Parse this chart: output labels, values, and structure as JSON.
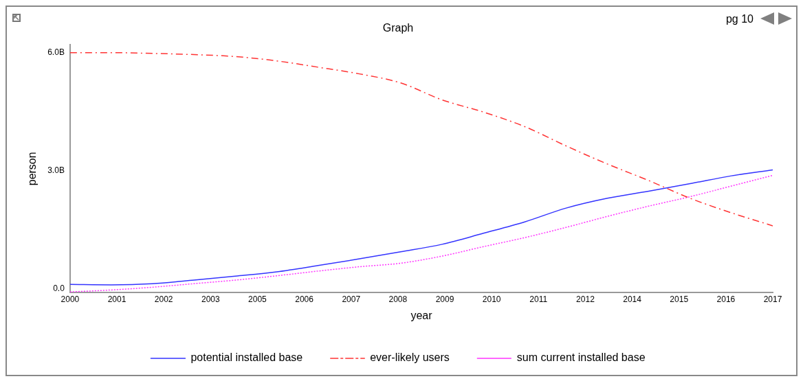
{
  "chart_data": {
    "type": "line",
    "title": "Graph",
    "xlabel": "year",
    "ylabel": "person",
    "annotations": [
      "pg 10"
    ],
    "x": [
      2000,
      2001,
      2002,
      2003,
      2004,
      2005,
      2006,
      2007,
      2008,
      2009,
      2010,
      2011,
      2012,
      2013,
      2014,
      2015,
      2016,
      2017
    ],
    "series": [
      {
        "name": "potential installed base",
        "color": "#3333ff",
        "line_style": "solid",
        "values": [
          0.11,
          0.1,
          0.13,
          0.22,
          0.32,
          0.43,
          0.59,
          0.76,
          0.94,
          1.13,
          1.41,
          1.7,
          2.05,
          2.3,
          2.48,
          2.67,
          2.87,
          3.02
        ]
      },
      {
        "name": "ever-likely users",
        "color": "#ff3333",
        "line_style": "dashed",
        "values": [
          6.0,
          6.0,
          5.98,
          5.95,
          5.9,
          5.79,
          5.63,
          5.46,
          5.23,
          4.8,
          4.49,
          4.12,
          3.63,
          3.17,
          2.75,
          2.3,
          1.93,
          1.6
        ]
      },
      {
        "name": "sum current installed base",
        "color": "#ff33ff",
        "line_style": "dotted",
        "values": [
          -0.08,
          -0.03,
          0.04,
          0.13,
          0.22,
          0.33,
          0.45,
          0.56,
          0.65,
          0.83,
          1.07,
          1.3,
          1.56,
          1.84,
          2.1,
          2.34,
          2.61,
          2.88
        ]
      }
    ],
    "xlim": [
      2000,
      2017
    ],
    "xticks": [
      2000,
      {
        "value": 2001.133,
        "label": "2001"
      },
      {
        "value": 2002.267,
        "label": "2002"
      },
      {
        "value": 2003.4,
        "label": "2003"
      },
      {
        "value": 2004.533,
        "label": "2005"
      },
      {
        "value": 2005.667,
        "label": "2006"
      },
      {
        "value": 2006.8,
        "label": "2007"
      },
      {
        "value": 2007.933,
        "label": "2008"
      },
      {
        "value": 2009.067,
        "label": "2009"
      },
      {
        "value": 2010.2,
        "label": "2010"
      },
      {
        "value": 2011.333,
        "label": "2011"
      },
      {
        "value": 2012.467,
        "label": "2012"
      },
      {
        "value": 2013.6,
        "label": "2014"
      },
      {
        "value": 2014.733,
        "label": "2015"
      },
      {
        "value": 2015.867,
        "label": "2016"
      },
      2017
    ],
    "ylim": [
      -0.1,
      6.2
    ],
    "yticks": [
      {
        "value": 0,
        "label": "0.0"
      },
      {
        "value": 3,
        "label": "3.0B"
      },
      {
        "value": 6,
        "label": "6.0B"
      }
    ],
    "grid": false,
    "legend": "bottom",
    "marker": "none"
  }
}
